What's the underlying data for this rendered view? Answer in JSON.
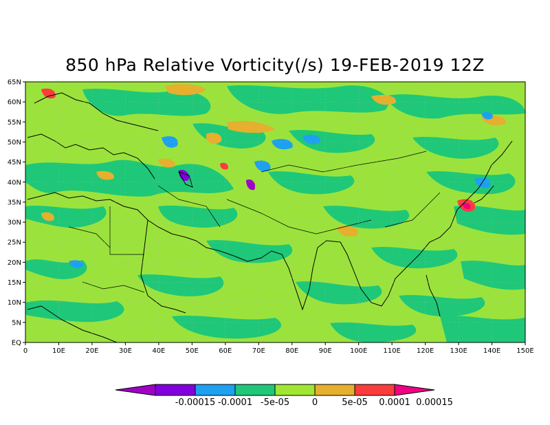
{
  "title": "850 hPa Relative Vorticity(/s) 19-FEB-2019 12Z",
  "map": {
    "lon_range": [
      0,
      150
    ],
    "lat_range": [
      0,
      65
    ],
    "lon_ticks": [
      "0",
      "10E",
      "20E",
      "30E",
      "40E",
      "50E",
      "60E",
      "70E",
      "80E",
      "90E",
      "100E",
      "110E",
      "120E",
      "130E",
      "140E",
      "150E"
    ],
    "lat_ticks": [
      "EQ",
      "5N",
      "10N",
      "15N",
      "20N",
      "25N",
      "30N",
      "35N",
      "40N",
      "45N",
      "50N",
      "55N",
      "60N",
      "65N"
    ],
    "background_color": "#9be33c",
    "grid": true
  },
  "colorbar": {
    "labels": [
      "-0.00015",
      "-0.0001",
      "-5e-05",
      "0",
      "5e-05",
      "0.0001",
      "0.00015"
    ],
    "colors": [
      "#a000c8",
      "#8200dc",
      "#1ea0f0",
      "#1ec878",
      "#a0e632",
      "#e6af2d",
      "#fa3c3c",
      "#f00082"
    ]
  }
}
